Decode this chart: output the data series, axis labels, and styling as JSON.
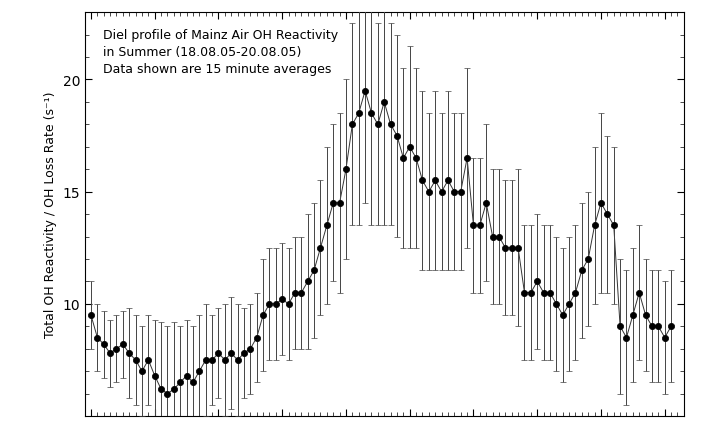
{
  "title": "Diel profile of Mainz Air OH Reactivity\nin Summer (18.08.05-20.08.05)\nData shown are 15 minute averages",
  "ylabel": "Total OH Reactivity / OH Loss Rate (s⁻¹)",
  "ylim": [
    5,
    23
  ],
  "yticks": [
    10,
    15,
    20
  ],
  "background_color": "#ffffff",
  "point_color": "#000000",
  "x_values": [
    0,
    1,
    2,
    3,
    4,
    5,
    6,
    7,
    8,
    9,
    10,
    11,
    12,
    13,
    14,
    15,
    16,
    17,
    18,
    19,
    20,
    21,
    22,
    23,
    24,
    25,
    26,
    27,
    28,
    29,
    30,
    31,
    32,
    33,
    34,
    35,
    36,
    37,
    38,
    39,
    40,
    41,
    42,
    43,
    44,
    45,
    46,
    47,
    48,
    49,
    50,
    51,
    52,
    53,
    54,
    55,
    56,
    57,
    58,
    59,
    60,
    61,
    62,
    63,
    64,
    65,
    66,
    67,
    68,
    69,
    70,
    71,
    72,
    73,
    74,
    75,
    76,
    77,
    78,
    79,
    80,
    81,
    82,
    83,
    84,
    85,
    86,
    87,
    88,
    89,
    90,
    91
  ],
  "y_values": [
    9.5,
    8.5,
    8.2,
    7.8,
    8.0,
    8.2,
    7.8,
    7.5,
    7.0,
    7.5,
    6.8,
    6.2,
    6.0,
    6.2,
    6.5,
    6.8,
    6.5,
    7.0,
    7.5,
    7.5,
    7.8,
    7.5,
    7.8,
    7.5,
    7.8,
    8.0,
    8.5,
    9.5,
    10.0,
    10.0,
    10.2,
    10.0,
    10.5,
    10.5,
    11.0,
    11.5,
    12.5,
    13.5,
    14.5,
    14.5,
    16.0,
    18.0,
    18.5,
    19.5,
    18.5,
    18.0,
    19.0,
    18.0,
    17.5,
    16.5,
    17.0,
    16.5,
    15.5,
    15.0,
    15.5,
    15.0,
    15.5,
    15.0,
    15.0,
    16.5,
    13.5,
    13.5,
    14.5,
    13.0,
    13.0,
    12.5,
    12.5,
    12.5,
    10.5,
    10.5,
    11.0,
    10.5,
    10.5,
    10.0,
    9.5,
    10.0,
    10.5,
    11.5,
    12.0,
    13.5,
    14.5,
    14.0,
    13.5,
    9.0,
    8.5,
    9.5,
    10.5,
    9.5,
    9.0,
    9.0,
    8.5,
    9.0
  ],
  "y_errors": [
    1.5,
    1.5,
    1.5,
    1.5,
    1.5,
    1.5,
    2.0,
    2.0,
    2.0,
    2.0,
    2.5,
    3.0,
    3.0,
    3.0,
    2.5,
    2.5,
    2.5,
    2.5,
    2.5,
    2.0,
    2.0,
    2.5,
    2.5,
    2.5,
    2.0,
    2.0,
    2.0,
    2.5,
    2.5,
    2.5,
    2.5,
    2.5,
    2.5,
    2.5,
    3.0,
    3.0,
    3.0,
    3.5,
    3.5,
    4.0,
    4.0,
    4.5,
    5.0,
    5.0,
    5.0,
    4.5,
    5.5,
    4.5,
    4.5,
    4.0,
    4.5,
    4.0,
    4.0,
    3.5,
    4.0,
    3.5,
    4.0,
    3.5,
    3.5,
    4.0,
    3.0,
    3.0,
    3.5,
    3.0,
    3.0,
    3.0,
    3.0,
    3.5,
    3.0,
    3.0,
    3.0,
    3.0,
    3.0,
    3.0,
    3.0,
    3.0,
    3.0,
    3.0,
    3.0,
    3.5,
    4.0,
    3.5,
    3.5,
    3.0,
    3.0,
    3.0,
    3.0,
    2.5,
    2.5,
    2.5,
    2.5,
    2.5
  ]
}
